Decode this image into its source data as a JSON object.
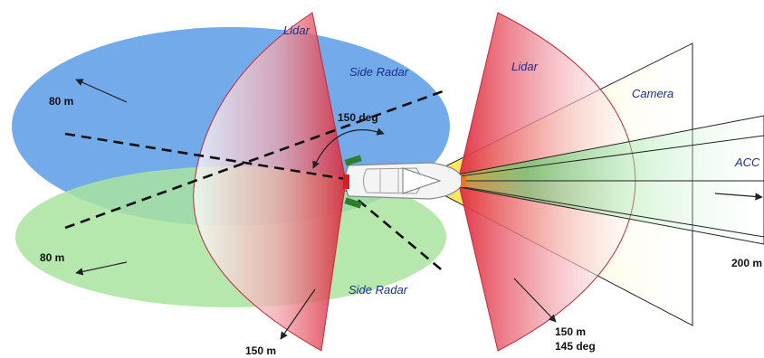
{
  "labels": {
    "lidar_rear": "Lidar",
    "lidar_front": "Lidar",
    "side_radar_top": "Side Radar",
    "side_radar_bottom": "Side Radar",
    "camera": "Camera",
    "acc": "ACC",
    "angle_rear": "150 deg",
    "range_top_left": "80 m",
    "range_bottom_left": "80 m",
    "range_rear_lidar": "150 m",
    "range_front_lidar": "150 m",
    "angle_front_lidar": "145 deg",
    "range_acc": "200 m"
  },
  "colors": {
    "side_radar_top": "#5b9be6",
    "side_radar_bottom": "#a9e4a0",
    "lidar": "#e0323f",
    "camera": "#fff7b0",
    "acc": "#3ecf5a",
    "sensor_red": "#d42020",
    "sensor_green": "#2e7d2e",
    "sensor_orange": "#e07a20"
  }
}
